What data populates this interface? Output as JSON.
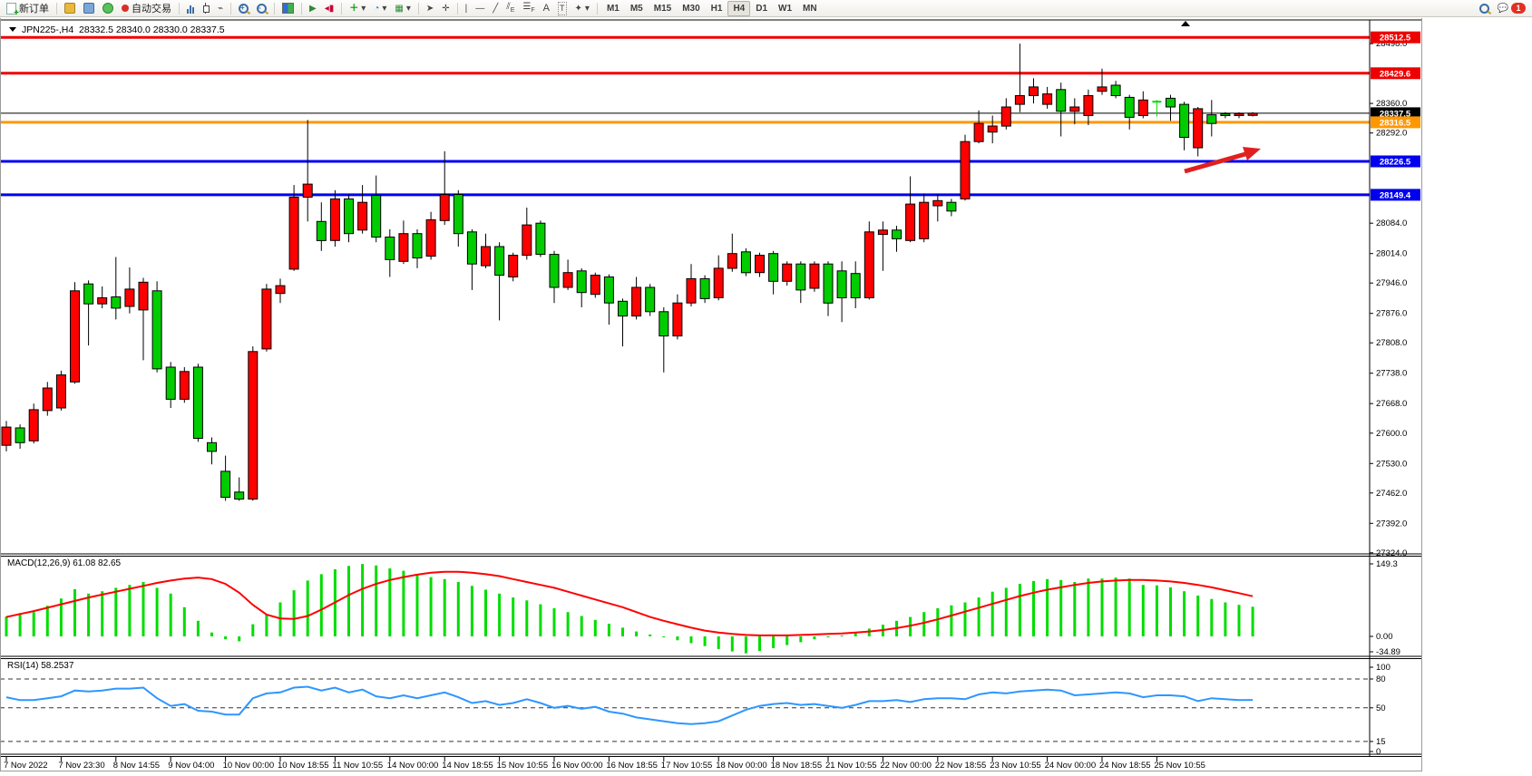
{
  "toolbar": {
    "new_order_label": "新订单",
    "auto_trading_label": "自动交易",
    "timeframes": [
      "M1",
      "M5",
      "M15",
      "M30",
      "H1",
      "H4",
      "D1",
      "W1",
      "MN"
    ],
    "active_timeframe": "H4",
    "notification_count": "1"
  },
  "chart": {
    "symbol_title": "JPN225-,H4",
    "ohlc_text": "28332.5 28340.0 28330.0 28337.5",
    "macd_label": "MACD(12,26,9) 61.08 82.65",
    "rsi_label": "RSI(14) 58.2537"
  },
  "axis": {
    "price_ticks": [
      28498.0,
      28360.0,
      28292.0,
      28084.0,
      28014.0,
      27946.0,
      27876.0,
      27808.0,
      27738.0,
      27668.0,
      27600.0,
      27530.0,
      27462.0,
      27392.0,
      27324.0
    ],
    "macd_ticks": [
      {
        "v": 149.3,
        "label": "149.3"
      },
      {
        "v": 0,
        "label": "0.00"
      },
      {
        "v": -34.89,
        "label": "-34.89"
      }
    ],
    "rsi_ticks": [
      {
        "v": 100,
        "label": "100"
      },
      {
        "v": 80,
        "label": "80"
      },
      {
        "v": 50,
        "label": "50"
      },
      {
        "v": 15,
        "label": "15"
      },
      {
        "v": 0,
        "label": "0"
      }
    ],
    "rsi_levels": [
      80,
      50,
      15
    ]
  },
  "chart_data": [
    {
      "type": "candlestick",
      "title": "JPN225-,H4",
      "timeframe": "H4",
      "up_color": "#ff0000",
      "down_color": "#00cc00",
      "note": "Chinese color convention: red = bullish, green = bearish",
      "ylim": [
        27324,
        28540
      ],
      "x_labels": [
        "7 Nov 2022",
        "7 Nov 23:30",
        "8 Nov 14:55",
        "9 Nov 04:00",
        "10 Nov 00:00",
        "10 Nov 18:55",
        "11 Nov 10:55",
        "14 Nov 00:00",
        "14 Nov 18:55",
        "15 Nov 10:55",
        "16 Nov 00:00",
        "16 Nov 18:55",
        "17 Nov 10:55",
        "18 Nov 00:00",
        "18 Nov 18:55",
        "21 Nov 10:55",
        "22 Nov 00:00",
        "22 Nov 18:55",
        "23 Nov 10:55",
        "24 Nov 00:00",
        "24 Nov 18:55",
        "25 Nov 10:55"
      ],
      "candles": [
        [
          27572,
          27628,
          27558,
          27614
        ],
        [
          27612,
          27620,
          27564,
          27578
        ],
        [
          27582,
          27668,
          27576,
          27654
        ],
        [
          27652,
          27718,
          27640,
          27704
        ],
        [
          27658,
          27744,
          27652,
          27734
        ],
        [
          27718,
          27948,
          27714,
          27928
        ],
        [
          27944,
          27952,
          27802,
          27898
        ],
        [
          27898,
          27938,
          27888,
          27912
        ],
        [
          27914,
          28006,
          27862,
          27888
        ],
        [
          27892,
          27982,
          27876,
          27932
        ],
        [
          27884,
          27958,
          27768,
          27948
        ],
        [
          27928,
          27950,
          27740,
          27748
        ],
        [
          27752,
          27764,
          27658,
          27678
        ],
        [
          27678,
          27752,
          27670,
          27742
        ],
        [
          27752,
          27760,
          27580,
          27588
        ],
        [
          27578,
          27590,
          27528,
          27558
        ],
        [
          27512,
          27548,
          27444,
          27452
        ],
        [
          27464,
          27498,
          27444,
          27448
        ],
        [
          27448,
          27800,
          27444,
          27788
        ],
        [
          27794,
          27944,
          27788,
          27932
        ],
        [
          27922,
          27956,
          27900,
          27940
        ],
        [
          27978,
          28172,
          27974,
          28144
        ],
        [
          28144,
          28322,
          28088,
          28174
        ],
        [
          28088,
          28132,
          28020,
          28044
        ],
        [
          28044,
          28160,
          28030,
          28140
        ],
        [
          28140,
          28150,
          28040,
          28060
        ],
        [
          28068,
          28172,
          28060,
          28132
        ],
        [
          28148,
          28194,
          28040,
          28052
        ],
        [
          28052,
          28070,
          27960,
          28000
        ],
        [
          27996,
          28090,
          27990,
          28060
        ],
        [
          28060,
          28070,
          27980,
          28004
        ],
        [
          28008,
          28110,
          28000,
          28092
        ],
        [
          28090,
          28250,
          28080,
          28150
        ],
        [
          28150,
          28160,
          28030,
          28060
        ],
        [
          28064,
          28070,
          27930,
          27990
        ],
        [
          27986,
          28060,
          27980,
          28030
        ],
        [
          28030,
          28040,
          27860,
          27964
        ],
        [
          27960,
          28016,
          27950,
          28010
        ],
        [
          28010,
          28120,
          28000,
          28080
        ],
        [
          28084,
          28090,
          28006,
          28012
        ],
        [
          28012,
          28020,
          27900,
          27936
        ],
        [
          27936,
          28000,
          27930,
          27970
        ],
        [
          27974,
          27980,
          27890,
          27924
        ],
        [
          27920,
          27970,
          27912,
          27964
        ],
        [
          27960,
          27966,
          27850,
          27900
        ],
        [
          27904,
          27910,
          27800,
          27870
        ],
        [
          27870,
          27960,
          27862,
          27936
        ],
        [
          27936,
          27944,
          27870,
          27880
        ],
        [
          27880,
          27890,
          27740,
          27824
        ],
        [
          27824,
          27920,
          27816,
          27900
        ],
        [
          27900,
          27990,
          27892,
          27956
        ],
        [
          27956,
          27964,
          27900,
          27910
        ],
        [
          27912,
          28010,
          27906,
          27980
        ],
        [
          27980,
          28060,
          27972,
          28014
        ],
        [
          28018,
          28026,
          27962,
          27970
        ],
        [
          27970,
          28016,
          27960,
          28010
        ],
        [
          28014,
          28020,
          27920,
          27950
        ],
        [
          27950,
          27996,
          27940,
          27990
        ],
        [
          27990,
          27996,
          27900,
          27930
        ],
        [
          27934,
          27996,
          27926,
          27990
        ],
        [
          27990,
          27996,
          27870,
          27900
        ],
        [
          27974,
          27996,
          27856,
          27912
        ],
        [
          27968,
          27996,
          27888,
          27912
        ],
        [
          27912,
          28088,
          27908,
          28064
        ],
        [
          28058,
          28088,
          27974,
          28068
        ],
        [
          28068,
          28078,
          28018,
          28048
        ],
        [
          28044,
          28192,
          28040,
          28128
        ],
        [
          28048,
          28152,
          28040,
          28132
        ],
        [
          28124,
          28152,
          28088,
          28136
        ],
        [
          28132,
          28140,
          28100,
          28112
        ],
        [
          28140,
          28288,
          28136,
          28272
        ],
        [
          28272,
          28344,
          28268,
          28314
        ],
        [
          28294,
          28332,
          28268,
          28308
        ],
        [
          28308,
          28372,
          28300,
          28352
        ],
        [
          28358,
          28498,
          28340,
          28378
        ],
        [
          28378,
          28418,
          28360,
          28398
        ],
        [
          28358,
          28398,
          28348,
          28382
        ],
        [
          28392,
          28408,
          28284,
          28342
        ],
        [
          28342,
          28372,
          28312,
          28352
        ],
        [
          28332,
          28392,
          28310,
          28378
        ],
        [
          28388,
          28440,
          28380,
          28398
        ],
        [
          28402,
          28412,
          28372,
          28378
        ],
        [
          28374,
          28380,
          28300,
          28328
        ],
        [
          28332,
          28388,
          28326,
          28368
        ],
        [
          28364,
          28368,
          28330,
          28363
        ],
        [
          28372,
          28380,
          28320,
          28352
        ],
        [
          28358,
          28364,
          28252,
          28282
        ],
        [
          28258,
          28352,
          28238,
          28348
        ],
        [
          28334,
          28368,
          28284,
          28314
        ],
        [
          28336,
          28340,
          28326,
          28332
        ],
        [
          28332,
          28340,
          28326,
          28336
        ],
        [
          28332.5,
          28340,
          28330,
          28337.5
        ]
      ],
      "hlines": [
        {
          "price": 28512.5,
          "color": "#ee0000",
          "label": "28512.5",
          "width": 3
        },
        {
          "price": 28429.6,
          "color": "#ee0000",
          "label": "28429.6",
          "width": 3
        },
        {
          "price": 28337.5,
          "color": "#000000",
          "label": "28337.5",
          "width": 1
        },
        {
          "price": 28316.5,
          "color": "#ff9800",
          "label": "28316.5",
          "width": 3
        },
        {
          "price": 28226.5,
          "color": "#0000ee",
          "label": "28226.5",
          "width": 3
        },
        {
          "price": 28149.4,
          "color": "#0000ee",
          "label": "28149.4",
          "width": 3
        }
      ],
      "annotations": [
        {
          "type": "arrow",
          "color": "#e02020",
          "from": [
            1306,
            189
          ],
          "to": [
            1386,
            166
          ]
        }
      ]
    },
    {
      "type": "bar",
      "name": "MACD(12,26,9)",
      "last_macd": 61.08,
      "last_signal": 82.65,
      "bar_color": "#00dd00",
      "signal_color": "#ff0000",
      "ylim": [
        -34.89,
        149.3
      ],
      "values": [
        41,
        48,
        50,
        63,
        78,
        97,
        88,
        93,
        100,
        106,
        112,
        100,
        88,
        60,
        32,
        8,
        -6,
        -10,
        25,
        45,
        70,
        95,
        115,
        128,
        138,
        145,
        149,
        146,
        140,
        135,
        128,
        122,
        118,
        112,
        104,
        96,
        88,
        80,
        74,
        66,
        58,
        50,
        42,
        34,
        26,
        18,
        10,
        4,
        -2,
        -8,
        -14,
        -20,
        -26,
        -31,
        -34.9,
        -30,
        -24,
        -18,
        -12,
        -6,
        -2,
        2,
        8,
        16,
        24,
        32,
        40,
        50,
        58,
        64,
        70,
        80,
        92,
        100,
        108,
        114,
        118,
        116,
        112,
        119,
        119,
        121,
        119,
        106,
        105,
        101,
        93,
        84,
        77,
        70,
        65,
        61.08
      ],
      "signal": [
        40,
        46,
        52,
        59,
        66,
        73,
        80,
        86,
        92,
        98,
        104,
        110,
        115,
        119,
        121,
        118,
        108,
        90,
        65,
        45,
        37,
        36,
        42,
        55,
        70,
        85,
        98,
        108,
        116,
        122,
        127,
        131,
        133,
        133,
        131,
        128,
        124,
        118,
        112,
        106,
        100,
        92,
        84,
        76,
        68,
        60,
        50,
        40,
        32,
        25,
        18,
        12,
        8,
        5,
        3,
        2,
        2,
        2,
        3,
        4,
        5,
        6,
        8,
        10,
        13,
        17,
        22,
        28,
        35,
        43,
        51,
        59,
        67,
        75,
        83,
        90,
        96,
        101,
        106,
        110,
        113,
        115,
        116,
        116,
        115,
        113,
        110,
        106,
        101,
        95,
        89,
        82.65
      ]
    },
    {
      "type": "line",
      "name": "RSI(14)",
      "last": 58.2537,
      "line_color": "#2e96ff",
      "levels": [
        80,
        50,
        15
      ],
      "ylim": [
        0,
        100
      ],
      "values": [
        61,
        58,
        58,
        60,
        62,
        68,
        67,
        68,
        70,
        70,
        71,
        60,
        52,
        54,
        47,
        46,
        43,
        43,
        60,
        65,
        66,
        71,
        72,
        68,
        71,
        66,
        69,
        62,
        60,
        63,
        60,
        63,
        66,
        61,
        55,
        57,
        53,
        55,
        59,
        55,
        50,
        52,
        49,
        51,
        46,
        44,
        40,
        38,
        36,
        34,
        33,
        34,
        36,
        42,
        48,
        52,
        54,
        55,
        53,
        54,
        52,
        50,
        53,
        57,
        57,
        58,
        56,
        59,
        60,
        60,
        59,
        64,
        66,
        65,
        67,
        68,
        69,
        68,
        63,
        64,
        65,
        66,
        65,
        61,
        63,
        63,
        62,
        57,
        60,
        59,
        58,
        58.25
      ]
    }
  ]
}
